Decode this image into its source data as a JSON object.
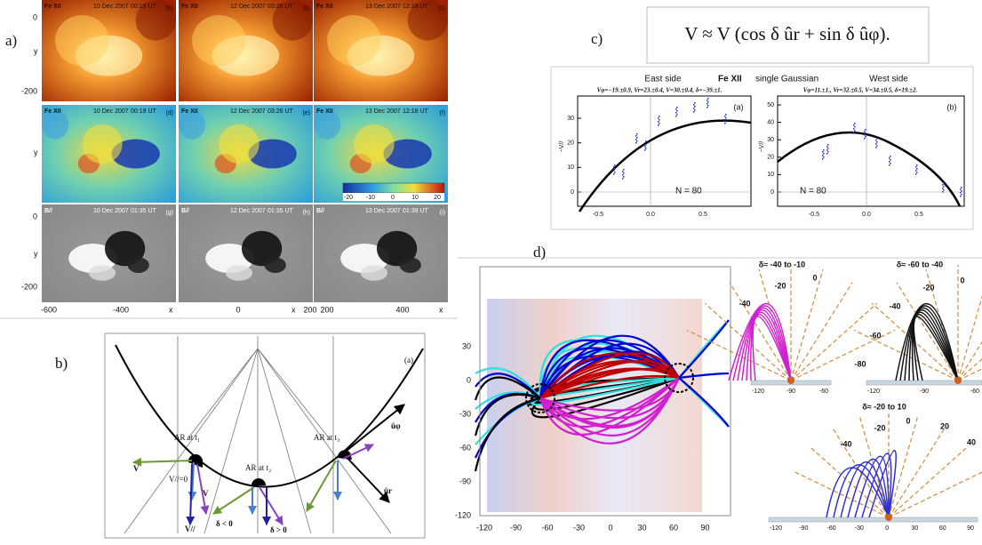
{
  "panel_labels": {
    "a": "a)",
    "b": "b)",
    "c": "c)",
    "d": "d)"
  },
  "panel_a": {
    "rows": [
      {
        "channel": "Fe XII",
        "frames": [
          {
            "date": "10 Dec 2007",
            "time": "00:19 UT",
            "tag": "(a)"
          },
          {
            "date": "12 Dec 2007",
            "time": "03:26 UT",
            "tag": "(b)"
          },
          {
            "date": "13 Dec 2007",
            "time": "12:18 UT",
            "tag": "(c)"
          }
        ]
      },
      {
        "channel": "Fe XII",
        "frames": [
          {
            "date": "10 Dec 2007",
            "time": "00:19 UT",
            "tag": "(d)"
          },
          {
            "date": "12 Dec 2007",
            "time": "03:26 UT",
            "tag": "(e)"
          },
          {
            "date": "13 Dec 2007",
            "time": "12:18 UT",
            "tag": "(f)"
          }
        ]
      },
      {
        "channel": "B//",
        "frames": [
          {
            "date": "10 Dec 2007",
            "time": "01:35 UT",
            "tag": "(g)"
          },
          {
            "date": "12 Dec 2007",
            "time": "01:35 UT",
            "tag": "(h)"
          },
          {
            "date": "13 Dec 2007",
            "time": "01:39 UT",
            "tag": "(i)"
          }
        ]
      }
    ],
    "y_label": "y",
    "x_label": "x",
    "row1_y_ticks": [
      "0",
      "-200"
    ],
    "row3_y_ticks": [
      "0",
      "-200"
    ],
    "x_ticks": [
      [
        "-600",
        "-400"
      ],
      [
        "0",
        "200"
      ],
      [
        "200",
        "400"
      ]
    ],
    "colorbar_ticks": [
      "-20",
      "-10",
      "0",
      "10",
      "20"
    ]
  },
  "panel_b": {
    "tag": "(a)",
    "ar_t1": "AR at t₁",
    "ar_t2": "AR at t₂",
    "ar_t3": "AR at t₃",
    "u_phi": "ûφ",
    "u_r": "ûr",
    "v1": "V",
    "v_par_zero": "V//=0",
    "v2": "V",
    "v_par": "V//",
    "delta_neg": "δ < 0",
    "delta_pos": "δ > 0"
  },
  "panel_c": {
    "equation": "V ≈ V (cos δ ûr + sin δ ûφ).",
    "east": "East side",
    "channel": "Fe XII",
    "method": "single Gaussian",
    "west": "West side",
    "fit_east": "Vφ=−19.±0.9, Vr=23.±0.4, V=30.±0.4, δ=−39.±1.",
    "fit_west": "Vφ=11.±1., Vr=32.±0.5, V=34.±0.5, δ=19.±2.",
    "plots": [
      {
        "tag": "(a)",
        "y_label": "−V//",
        "yticks": [
          "30",
          "20",
          "10",
          "0"
        ],
        "xticks": [
          "-0.5",
          "0.0",
          "0.5"
        ],
        "n": "N = 80"
      },
      {
        "tag": "(b)",
        "y_label": "−V//",
        "yticks": [
          "50",
          "40",
          "30",
          "20",
          "10",
          "0"
        ],
        "xticks": [
          "-0.5",
          "0.0",
          "0.5"
        ],
        "n": "N = 80"
      }
    ]
  },
  "panel_d": {
    "xticks": [
      "-120",
      "-90",
      "-60",
      "-30",
      "0",
      "30",
      "60",
      "90"
    ],
    "yticks": [
      "30",
      "0",
      "-30",
      "-60",
      "-90",
      "-120"
    ],
    "insets": [
      {
        "title": "δ≈ -40 to -10",
        "labels": [
          "-40",
          "-20",
          "0"
        ],
        "xticks": [
          "-120",
          "-90",
          "-60"
        ]
      },
      {
        "title": "δ≈ -60 to -40",
        "labels": [
          "-20",
          "0",
          "-40",
          "-60",
          "-80"
        ],
        "xticks": [
          "-120",
          "-90",
          "-60"
        ]
      },
      {
        "title": "δ≈ -20 to 10",
        "labels": [
          "-40",
          "-20",
          "0",
          "20",
          "40"
        ],
        "xticks": [
          "-120",
          "-90",
          "-60",
          "-30",
          "0",
          "30",
          "60",
          "90"
        ]
      }
    ]
  }
}
